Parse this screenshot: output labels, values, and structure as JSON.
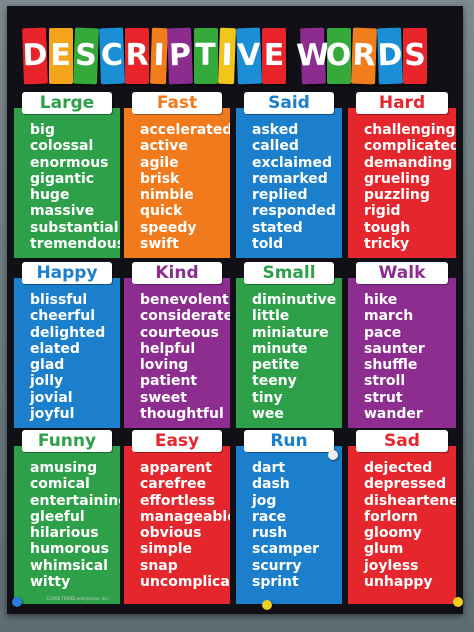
{
  "title": {
    "letters": [
      "D",
      "E",
      "S",
      "C",
      "R",
      "I",
      "P",
      "T",
      "I",
      "V",
      "E",
      " ",
      "W",
      "O",
      "R",
      "D",
      "S"
    ],
    "colors": [
      "#e8232a",
      "#f2a51b",
      "#35a93a",
      "#1b8fd6",
      "#e8232a",
      "#f07e1c",
      "#8b2c8e",
      "#35a93a",
      "#f2c51b",
      "#1b8fd6",
      "#e8232a",
      "#000000",
      "#8b2c8e",
      "#35a93a",
      "#f07e1c",
      "#1b8fd6",
      "#e8232a"
    ],
    "text": "DESCRIPTIVE WORDS"
  },
  "categories": [
    {
      "name": "Large",
      "color": "#2ea04a",
      "words": [
        "big",
        "colossal",
        "enormous",
        "gigantic",
        "huge",
        "massive",
        "substantial",
        "tremendous"
      ]
    },
    {
      "name": "Fast",
      "color": "#f07a1c",
      "words": [
        "accelerated",
        "active",
        "agile",
        "brisk",
        "nimble",
        "quick",
        "speedy",
        "swift"
      ]
    },
    {
      "name": "Said",
      "color": "#1b7fcc",
      "words": [
        "asked",
        "called",
        "exclaimed",
        "remarked",
        "replied",
        "responded",
        "stated",
        "told"
      ]
    },
    {
      "name": "Hard",
      "color": "#e6262d",
      "words": [
        "challenging",
        "complicated",
        "demanding",
        "grueling",
        "puzzling",
        "rigid",
        "tough",
        "tricky"
      ]
    },
    {
      "name": "Happy",
      "color": "#1b7fcc",
      "words": [
        "blissful",
        "cheerful",
        "delighted",
        "elated",
        "glad",
        "jolly",
        "jovial",
        "joyful"
      ]
    },
    {
      "name": "Kind",
      "color": "#8c2d8f",
      "words": [
        "benevolent",
        "considerate",
        "courteous",
        "helpful",
        "loving",
        "patient",
        "sweet",
        "thoughtful"
      ]
    },
    {
      "name": "Small",
      "color": "#2ea04a",
      "words": [
        "diminutive",
        "little",
        "miniature",
        "minute",
        "petite",
        "teeny",
        "tiny",
        "wee"
      ]
    },
    {
      "name": "Walk",
      "color": "#8c2d8f",
      "words": [
        "hike",
        "march",
        "pace",
        "saunter",
        "shuffle",
        "stroll",
        "strut",
        "wander"
      ]
    },
    {
      "name": "Funny",
      "color": "#2ea04a",
      "words": [
        "amusing",
        "comical",
        "entertaining",
        "gleeful",
        "hilarious",
        "humorous",
        "whimsical",
        "witty"
      ]
    },
    {
      "name": "Easy",
      "color": "#e6262d",
      "words": [
        "apparent",
        "carefree",
        "effortless",
        "manageable",
        "obvious",
        "simple",
        "snap",
        "uncomplicated"
      ]
    },
    {
      "name": "Run",
      "color": "#1b7fcc",
      "words": [
        "dart",
        "dash",
        "jog",
        "race",
        "rush",
        "scamper",
        "scurry",
        "sprint"
      ]
    },
    {
      "name": "Sad",
      "color": "#e6262d",
      "words": [
        "dejected",
        "depressed",
        "disheartened",
        "forlorn",
        "gloomy",
        "glum",
        "joyless",
        "unhappy"
      ]
    }
  ],
  "credit": "©2008 TREND enterprises, Inc."
}
